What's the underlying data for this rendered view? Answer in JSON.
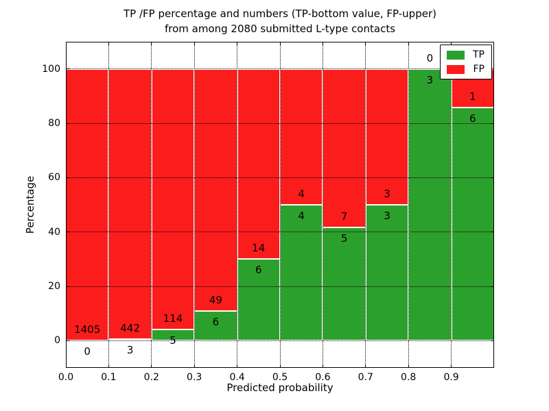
{
  "figure": {
    "title_line1": "TP /FP percentage and numbers (TP-bottom value, FP-upper)",
    "title_line2": "from among 2080 submitted L-type contacts",
    "total_contacts": "2080"
  },
  "chart_data": {
    "type": "bar",
    "stacked": true,
    "title": "TP /FP percentage and numbers (TP-bottom value, FP-upper) from among 2080 submitted L-type contacts",
    "xlabel": "Predicted probability",
    "ylabel": "Percentage",
    "xlim": [
      0.0,
      1.0
    ],
    "ylim": [
      -10,
      110
    ],
    "bin_width": 0.1,
    "grid": "dotted",
    "legend_position": "upper right",
    "categories": [
      "0.0-0.1",
      "0.1-0.2",
      "0.2-0.3",
      "0.3-0.4",
      "0.4-0.5",
      "0.5-0.6",
      "0.6-0.7",
      "0.7-0.8",
      "0.8-0.9",
      "0.9-1.0"
    ],
    "series": [
      {
        "name": "TP",
        "color": "#2ca02c",
        "counts": [
          0,
          3,
          5,
          6,
          6,
          4,
          5,
          3,
          3,
          6
        ]
      },
      {
        "name": "FP",
        "color": "#fb1c1c",
        "counts": [
          1405,
          442,
          114,
          49,
          14,
          4,
          7,
          3,
          0,
          1
        ]
      }
    ],
    "tp_percent": [
      0.0,
      0.674,
      4.202,
      10.909,
      30.0,
      50.0,
      41.667,
      50.0,
      100.0,
      85.714
    ],
    "xtick_labels": [
      "0.0",
      "0.1",
      "0.2",
      "0.3",
      "0.4",
      "0.5",
      "0.6",
      "0.7",
      "0.8",
      "0.9"
    ],
    "ytick_values": [
      0,
      20,
      40,
      60,
      80,
      100
    ]
  }
}
